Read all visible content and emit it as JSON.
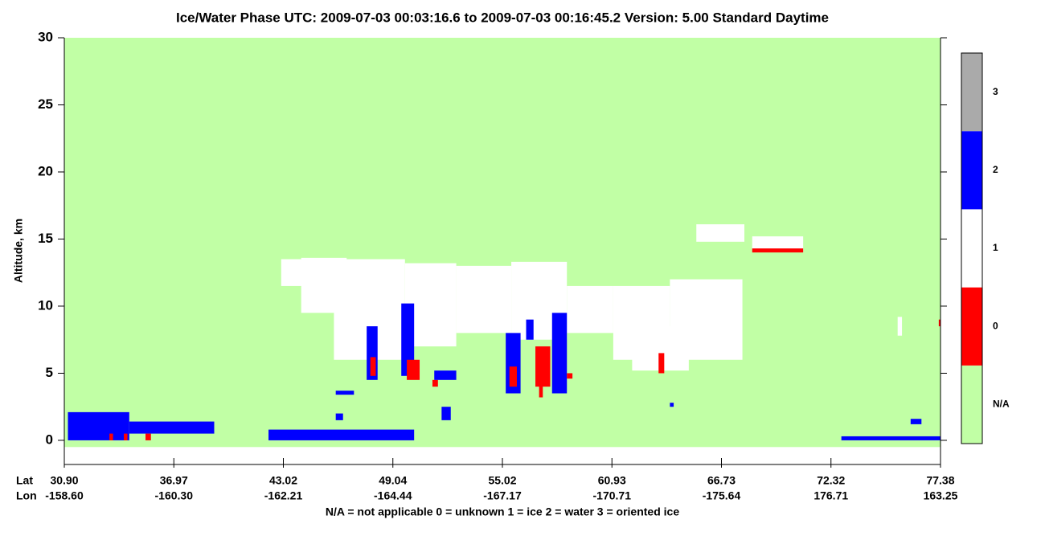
{
  "chart_data": {
    "type": "curtain",
    "title": "Ice/Water Phase    UTC:  2009-07-03   00:03:16.6  to  2009-07-03   00:16:45.2    Version: 5.00  Standard Daytime",
    "y_label": "Altitude, km",
    "x_row_labels": [
      "Lat",
      "Lon"
    ],
    "footnote": "N/A = not applicable     0 = unknown     1 = ice     2 = water     3 = oriented ice",
    "ylim": [
      -1.8,
      30
    ],
    "yticks": [
      0,
      5,
      10,
      15,
      20,
      25,
      30
    ],
    "surface_alt": -0.5,
    "xticks": [
      {
        "value": 30.9,
        "label": "30.90",
        "lon": {
          "value": -158.6,
          "label": "-158.60"
        }
      },
      {
        "value": 36.97,
        "label": "36.97",
        "lon": {
          "value": -160.3,
          "label": "-160.30"
        }
      },
      {
        "value": 43.02,
        "label": "43.02",
        "lon": {
          "value": -162.21,
          "label": "-162.21"
        }
      },
      {
        "value": 49.04,
        "label": "49.04",
        "lon": {
          "value": -164.44,
          "label": "-164.44"
        }
      },
      {
        "value": 55.02,
        "label": "55.02",
        "lon": {
          "value": -167.17,
          "label": "-167.17"
        }
      },
      {
        "value": 60.93,
        "label": "60.93",
        "lon": {
          "value": -170.71,
          "label": "-170.71"
        }
      },
      {
        "value": 66.73,
        "label": "66.73",
        "lon": {
          "value": -175.64,
          "label": "-175.64"
        }
      },
      {
        "value": 72.32,
        "label": "72.32",
        "lon": {
          "value": 176.71,
          "label": "176.71"
        }
      },
      {
        "value": 77.38,
        "label": "77.38",
        "lon": {
          "value": 163.25,
          "label": "163.25"
        }
      }
    ],
    "classes": [
      {
        "label": "N/A",
        "color": "#c1ffa5"
      },
      {
        "value": 0,
        "label": "0",
        "color": "#ff0000"
      },
      {
        "value": 1,
        "label": "1",
        "color": "#ffffff"
      },
      {
        "value": 2,
        "label": "2",
        "color": "#0000ff"
      },
      {
        "value": 3,
        "label": "3",
        "color": "#aaaaaa"
      }
    ],
    "cells": [
      {
        "lat": [
          31.1,
          34.5
        ],
        "alt": [
          0,
          2.1
        ],
        "class": 2
      },
      {
        "lat": [
          34.5,
          39.2
        ],
        "alt": [
          0.5,
          1.4
        ],
        "class": 2
      },
      {
        "lat": [
          33.4,
          33.6
        ],
        "alt": [
          0,
          0.5
        ],
        "class": 0
      },
      {
        "lat": [
          34.2,
          34.4
        ],
        "alt": [
          0,
          0.5
        ],
        "class": 0
      },
      {
        "lat": [
          35.4,
          35.7
        ],
        "alt": [
          0,
          0.5
        ],
        "class": 0
      },
      {
        "lat": [
          42.2,
          50.2
        ],
        "alt": [
          0,
          0.8
        ],
        "class": 2
      },
      {
        "lat": [
          45.9,
          46.9
        ],
        "alt": [
          3.4,
          3.7
        ],
        "class": 2
      },
      {
        "lat": [
          45.9,
          46.3
        ],
        "alt": [
          1.5,
          2
        ],
        "class": 2
      },
      {
        "lat": [
          42.9,
          45.0
        ],
        "alt": [
          11.5,
          13.5
        ],
        "class": 1
      },
      {
        "lat": [
          44.0,
          46.5
        ],
        "alt": [
          9.5,
          13.6
        ],
        "class": 1
      },
      {
        "lat": [
          45.8,
          49.7
        ],
        "alt": [
          6.0,
          13.5
        ],
        "class": 1
      },
      {
        "lat": [
          49.7,
          52.5
        ],
        "alt": [
          7.0,
          13.2
        ],
        "class": 1
      },
      {
        "lat": [
          52.5,
          55.5
        ],
        "alt": [
          8.0,
          13.0
        ],
        "class": 1
      },
      {
        "lat": [
          55.5,
          58.5
        ],
        "alt": [
          7.5,
          13.3
        ],
        "class": 1
      },
      {
        "lat": [
          58.5,
          61.0
        ],
        "alt": [
          8.0,
          11.5
        ],
        "class": 1
      },
      {
        "lat": [
          61.0,
          64.0
        ],
        "alt": [
          6.0,
          11.5
        ],
        "class": 1
      },
      {
        "lat": [
          64.0,
          67.8
        ],
        "alt": [
          6.0,
          12.0
        ],
        "class": 1
      },
      {
        "lat": [
          62.0,
          65.0
        ],
        "alt": [
          5.2,
          8.5
        ],
        "class": 1
      },
      {
        "lat": [
          47.6,
          48.2
        ],
        "alt": [
          4.5,
          8.5
        ],
        "class": 2
      },
      {
        "lat": [
          49.5,
          50.2
        ],
        "alt": [
          4.8,
          10.2
        ],
        "class": 2
      },
      {
        "lat": [
          55.2,
          56.0
        ],
        "alt": [
          3.5,
          8.0
        ],
        "class": 2
      },
      {
        "lat": [
          57.7,
          58.5
        ],
        "alt": [
          3.5,
          9.5
        ],
        "class": 2
      },
      {
        "lat": [
          56.3,
          56.7
        ],
        "alt": [
          7.5,
          9.0
        ],
        "class": 2
      },
      {
        "lat": [
          47.8,
          48.1
        ],
        "alt": [
          4.8,
          6.2
        ],
        "class": 0
      },
      {
        "lat": [
          49.8,
          50.5
        ],
        "alt": [
          4.5,
          6
        ],
        "class": 0
      },
      {
        "lat": [
          55.4,
          55.8
        ],
        "alt": [
          4,
          5.5
        ],
        "class": 0
      },
      {
        "lat": [
          56.8,
          57.6
        ],
        "alt": [
          4,
          7
        ],
        "class": 0
      },
      {
        "lat": [
          57.0,
          57.2
        ],
        "alt": [
          3.2,
          4.5
        ],
        "class": 0
      },
      {
        "lat": [
          51.2,
          51.5
        ],
        "alt": [
          4,
          4.5
        ],
        "class": 0
      },
      {
        "lat": [
          58.5,
          58.8
        ],
        "alt": [
          4.6,
          5
        ],
        "class": 0
      },
      {
        "lat": [
          63.4,
          63.7
        ],
        "alt": [
          5,
          6.5
        ],
        "class": 0
      },
      {
        "lat": [
          51.7,
          52.2
        ],
        "alt": [
          1.5,
          2.5
        ],
        "class": 2
      },
      {
        "lat": [
          51.3,
          52.5
        ],
        "alt": [
          4.5,
          5.2
        ],
        "class": 2
      },
      {
        "lat": [
          65.4,
          67.9
        ],
        "alt": [
          14.8,
          16.1
        ],
        "class": 1
      },
      {
        "lat": [
          68.3,
          70.9
        ],
        "alt": [
          14.2,
          15.2
        ],
        "class": 1
      },
      {
        "lat": [
          68.3,
          70.9
        ],
        "alt": [
          14,
          14.3
        ],
        "class": 0
      },
      {
        "lat": [
          72.8,
          77.38
        ],
        "alt": [
          0,
          0.3
        ],
        "class": 2
      },
      {
        "lat": [
          76.0,
          76.5
        ],
        "alt": [
          1.2,
          1.6
        ],
        "class": 2
      },
      {
        "lat": [
          75.4,
          75.6
        ],
        "alt": [
          7.8,
          9.2
        ],
        "class": 1
      },
      {
        "lat": [
          77.3,
          77.38
        ],
        "alt": [
          8.5,
          9.0
        ],
        "class": 0
      },
      {
        "lat": [
          64.0,
          64.2
        ],
        "alt": [
          2.5,
          2.8
        ],
        "class": 2
      }
    ]
  }
}
